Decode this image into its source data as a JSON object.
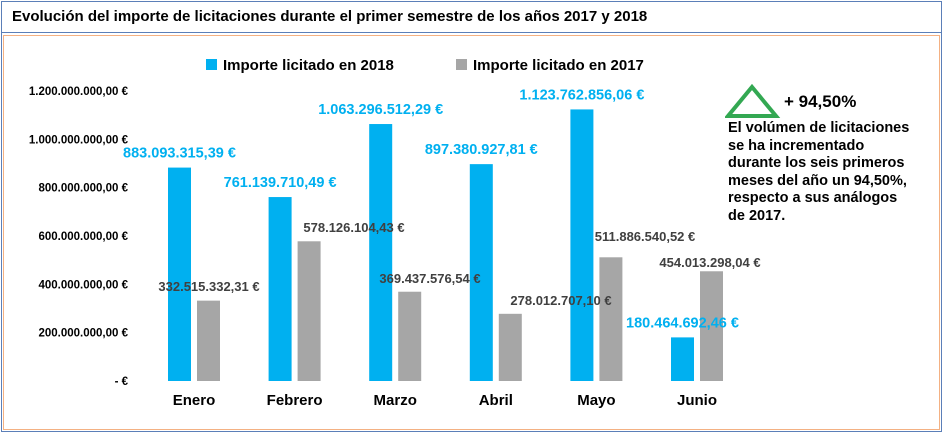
{
  "title": "Evolución del importe de licitaciones durante el primer semestre de los años 2017 y 2018",
  "chart_data": {
    "type": "bar",
    "categories": [
      "Enero",
      "Febrero",
      "Marzo",
      "Abril",
      "Mayo",
      "Junio"
    ],
    "series": [
      {
        "name": "Importe licitado en 2018",
        "color": "#00b0f0",
        "values": [
          883093315.39,
          761139710.49,
          1063296512.29,
          897380927.81,
          1123762856.06,
          180464692.46
        ],
        "labels": [
          "883.093.315,39 €",
          "761.139.710,49 €",
          "1.063.296.512,29 €",
          "897.380.927,81 €",
          "1.123.762.856,06 €",
          "180.464.692,46 €"
        ]
      },
      {
        "name": "Importe licitado en 2017",
        "color": "#a6a6a6",
        "values": [
          332515332.31,
          578126104.43,
          369437576.54,
          278012707.1,
          511886540.52,
          454013298.04
        ],
        "labels": [
          "332.515.332,31 €",
          "578.126.104,43 €",
          "369.437.576,54 €",
          "278.012.707,10 €",
          "511.886.540,52 €",
          "454.013.298,04 €"
        ]
      }
    ],
    "ylim": [
      0,
      1200000000
    ],
    "yticks": [
      0,
      200000000,
      400000000,
      600000000,
      800000000,
      1000000000,
      1200000000
    ],
    "ytick_labels": [
      "-  €",
      "200.000.000,00 €",
      "400.000.000,00 €",
      "600.000.000,00 €",
      "800.000.000,00 €",
      "1.000.000.000,00 €",
      "1.200.000.000,00 €"
    ],
    "legend_position": "top-center",
    "grid": false
  },
  "annotation": {
    "icon": "triangle-up-icon",
    "icon_color": "#33a852",
    "percentage": "+ 94,50%",
    "lines": [
      "El volúmen de licitaciones",
      "se ha incrementado",
      "durante los seis primeros",
      "meses del año un 94,50%,",
      "respecto a sus análogos",
      "de 2017."
    ]
  },
  "label_colors": {
    "series_2018": "#00b0f0",
    "series_2017": "#404040"
  }
}
